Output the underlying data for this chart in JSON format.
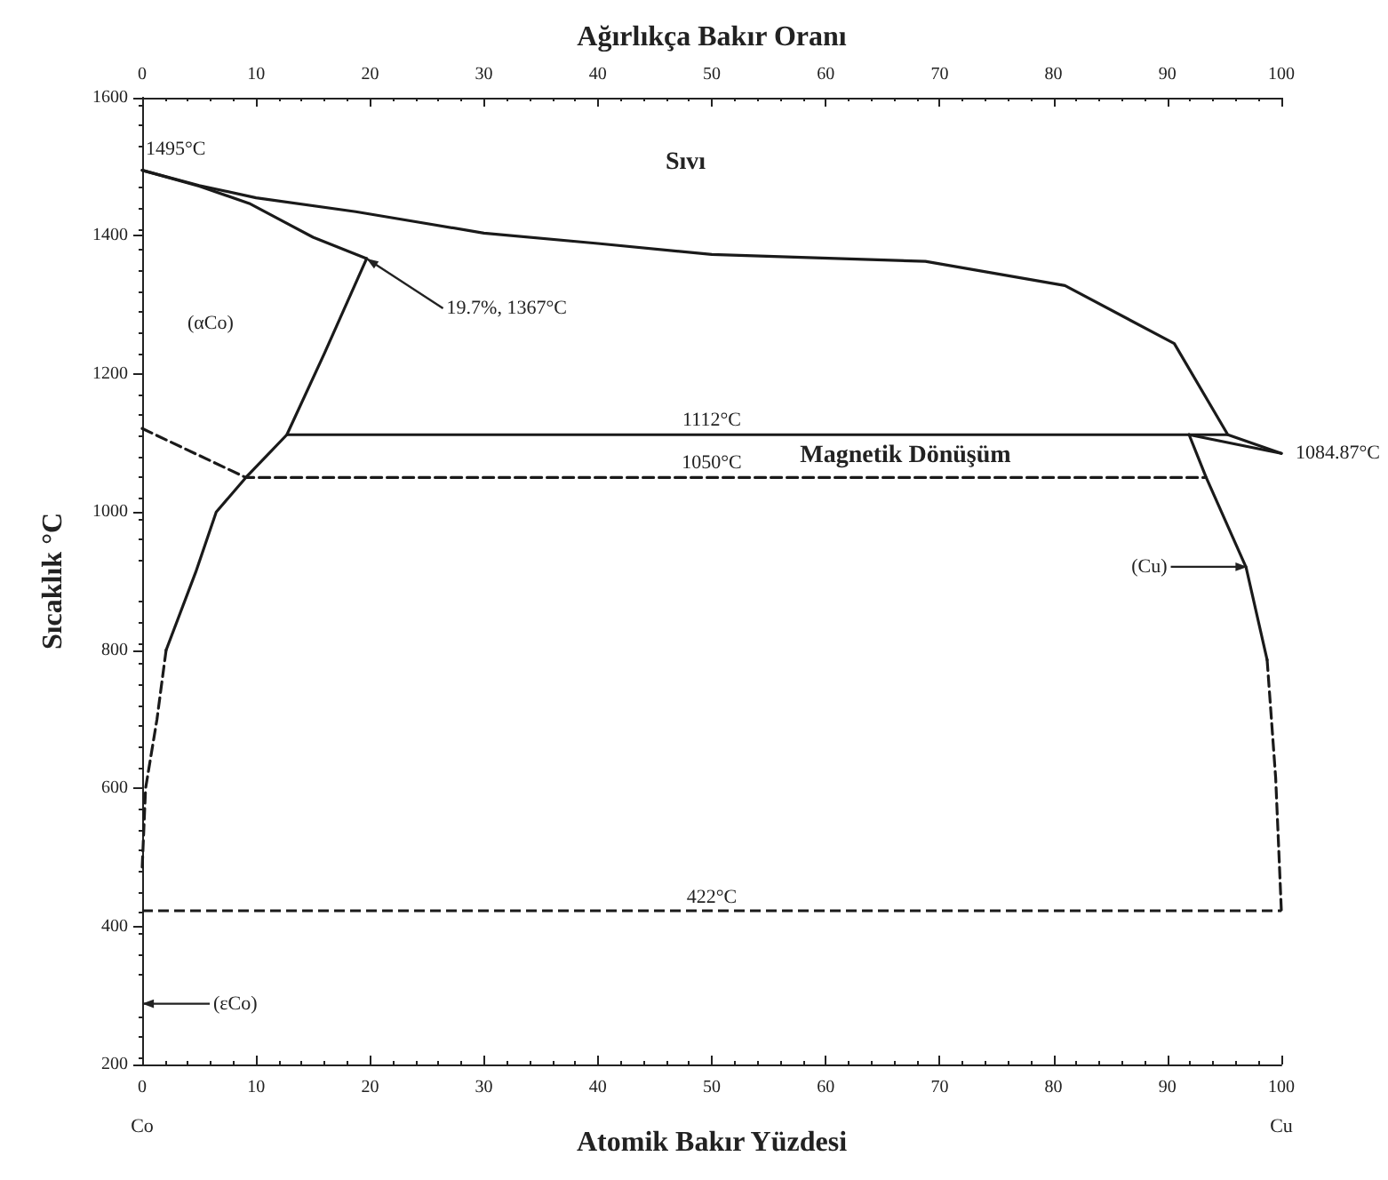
{
  "chart_data": {
    "type": "line",
    "xlabel": "Atomik Bakır Yüzdesi",
    "x2label": "Ağırlıkça Bakır Oranı",
    "ylabel": "Sıcaklık °C",
    "xlim": [
      0,
      100
    ],
    "xticks": [
      0,
      10,
      20,
      30,
      40,
      50,
      60,
      70,
      80,
      90,
      100
    ],
    "x2lim": [
      0,
      100
    ],
    "x2ticks": [
      0,
      10,
      20,
      30,
      40,
      50,
      60,
      70,
      80,
      90,
      100
    ],
    "ylim": [
      200,
      1600
    ],
    "yticks": [
      200,
      400,
      600,
      800,
      1000,
      1200,
      1400,
      1600
    ],
    "grid": false,
    "marker": "none",
    "series": [
      {
        "color": "#1a1a1a",
        "line_style": "solid",
        "x": [
          0,
          5,
          10,
          18.75,
          30,
          40,
          50,
          68.75,
          81,
          90.6,
          95.3,
          100
        ],
        "values": [
          1495,
          1473,
          1455,
          1435,
          1404,
          1389,
          1373,
          1363,
          1328,
          1244,
          1112,
          1085
        ]
      },
      {
        "color": "#1a1a1a",
        "line_style": "solid",
        "x": [
          0,
          5,
          9.4,
          15,
          19.7
        ],
        "values": [
          1495,
          1472,
          1447,
          1398,
          1367
        ]
      },
      {
        "color": "#1a1a1a",
        "line_style": "solid",
        "x": [
          19.7,
          16,
          12.7,
          9.1,
          6.5,
          4.7,
          2.1
        ],
        "values": [
          1367,
          1230,
          1112,
          1050,
          1000,
          913,
          800
        ]
      },
      {
        "color": "#1a1a1a",
        "line_style": "dashed",
        "x": [
          2.1,
          1.3,
          0.3,
          0
        ],
        "values": [
          800,
          700,
          600,
          485
        ]
      },
      {
        "color": "#1a1a1a",
        "line_style": "dashed",
        "x": [
          0,
          9.1,
          93.4
        ],
        "values": [
          1121,
          1050,
          1050
        ]
      },
      {
        "color": "#1a1a1a",
        "line_style": "solid",
        "x": [
          12.7,
          95.3
        ],
        "values": [
          1112,
          1112
        ]
      },
      {
        "color": "#1a1a1a",
        "line_style": "solid",
        "x": [
          91.9,
          93.4,
          96.9,
          98.75
        ],
        "values": [
          1112,
          1050,
          920,
          786
        ]
      },
      {
        "color": "#1a1a1a",
        "line_style": "dashed",
        "x": [
          98.75,
          99.5,
          99.8,
          100
        ],
        "values": [
          786,
          615,
          500,
          422
        ]
      },
      {
        "color": "#1a1a1a",
        "line_style": "solid",
        "x": [
          91.9,
          100
        ],
        "values": [
          1112,
          1085
        ]
      }
    ],
    "ref_lines": [
      {
        "axis": "y",
        "value": 422,
        "label": "422°C",
        "color": "#1a1a1a",
        "line_style": "dashed"
      }
    ],
    "annotations": [
      "Sıvı",
      "(αCo)",
      {
        "text": "1495°C",
        "x": 0,
        "y": 1495
      },
      {
        "text": "19.7%, 1367°C",
        "x": 19.7,
        "y": 1367
      },
      {
        "text": "1112°C",
        "x": 50,
        "y": 1112
      },
      {
        "text": "1050°C",
        "x": 50,
        "y": 1050
      },
      {
        "text": "Magnetik Dönüşüm",
        "x": 67,
        "y": 1050
      },
      {
        "text": "1084.87°C",
        "x": 100,
        "y": 1084.87
      },
      "(Cu)",
      "(εCo)",
      "Co",
      "Cu"
    ]
  }
}
